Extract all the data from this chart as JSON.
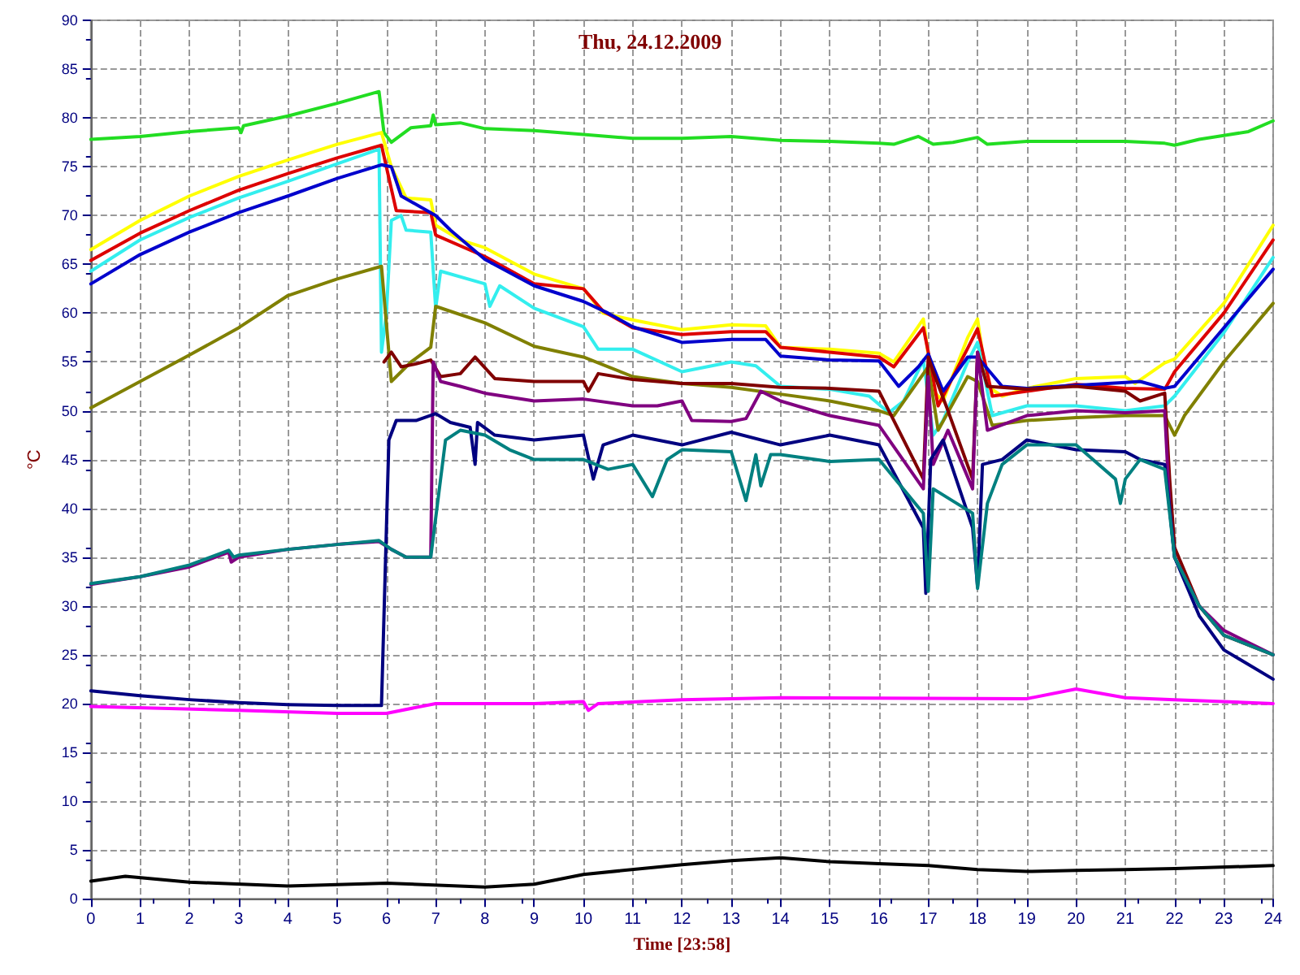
{
  "chart_data": {
    "type": "line",
    "title": "Thu, 24.12.2009",
    "xlabel": "Time [23:58]",
    "ylabel": "°C",
    "xlim": [
      0,
      24
    ],
    "xticks": [
      0,
      1,
      2,
      3,
      4,
      5,
      6,
      7,
      8,
      9,
      10,
      11,
      12,
      13,
      14,
      15,
      16,
      17,
      18,
      19,
      20,
      21,
      22,
      23,
      24
    ],
    "ylim": [
      0,
      90
    ],
    "yticks": [
      0,
      5,
      10,
      15,
      20,
      25,
      30,
      35,
      40,
      45,
      50,
      55,
      60,
      65,
      70,
      75,
      80,
      85,
      90
    ],
    "grid": true,
    "marker": "none",
    "line_style": "solid",
    "series": [
      {
        "color": "#22dd22",
        "x": [
          0,
          1,
          2,
          3,
          3.05,
          3.1,
          4,
          5,
          5.85,
          5.95,
          6.1,
          6.5,
          6.9,
          6.95,
          7,
          7.5,
          8,
          9,
          10,
          11,
          12,
          13,
          14,
          15,
          16,
          16.3,
          16.8,
          17.1,
          17.5,
          18,
          18.2,
          19,
          20,
          21,
          21.8,
          22,
          22.5,
          23,
          23.5,
          24
        ],
        "values": [
          77.8,
          78.1,
          78.6,
          79,
          78.5,
          79.2,
          80.2,
          81.5,
          82.7,
          78.5,
          77.5,
          79,
          79.2,
          80.3,
          79.3,
          79.5,
          78.9,
          78.7,
          78.3,
          77.9,
          77.9,
          78.1,
          77.7,
          77.6,
          77.4,
          77.3,
          78.1,
          77.3,
          77.5,
          78,
          77.3,
          77.6,
          77.6,
          77.6,
          77.4,
          77.2,
          77.8,
          78.2,
          78.6,
          79.7
        ]
      },
      {
        "color": "#ffff00",
        "x": [
          0,
          1,
          2,
          3,
          4,
          5,
          5.9,
          6.1,
          6.4,
          6.9,
          7,
          7.5,
          8,
          9,
          10,
          10.4,
          11,
          12,
          13,
          13.7,
          14,
          15,
          16,
          16.3,
          16.9,
          17.1,
          17.3,
          17.8,
          18,
          18.2,
          18.5,
          19,
          20,
          21,
          21.2,
          21.8,
          22,
          23,
          24
        ],
        "values": [
          66.5,
          69.5,
          72,
          74,
          75.7,
          77.3,
          78.5,
          75,
          71.8,
          71.6,
          69,
          67.5,
          66.7,
          64,
          62.5,
          60,
          59.3,
          58.3,
          58.8,
          58.7,
          56.5,
          56.3,
          55.9,
          55,
          59.4,
          52,
          51,
          57.5,
          59.4,
          52.5,
          51.5,
          52.3,
          53.3,
          53.5,
          52.8,
          54.9,
          55.3,
          61,
          69
        ]
      },
      {
        "color": "#dd0000",
        "x": [
          0,
          1,
          2,
          3,
          4,
          5,
          5.9,
          6.2,
          6.9,
          7,
          8,
          9,
          10,
          10.4,
          11,
          12,
          13,
          13.7,
          14,
          15,
          16,
          16.3,
          16.9,
          17,
          17.2,
          17.8,
          18,
          18.3,
          19,
          20,
          21,
          21.8,
          22,
          23,
          24
        ],
        "values": [
          65.4,
          68.2,
          70.5,
          72.6,
          74.3,
          75.9,
          77.2,
          70.5,
          70.3,
          68,
          65.8,
          63,
          62.5,
          60.2,
          58.5,
          57.8,
          58.1,
          58.1,
          56.5,
          56,
          55.5,
          54.5,
          58.5,
          56,
          50.5,
          56.4,
          58.4,
          51.5,
          52,
          52.7,
          52.3,
          52.2,
          54,
          60,
          67.5
        ]
      },
      {
        "color": "#33eeee",
        "x": [
          0,
          1,
          2,
          3,
          4,
          5,
          5.85,
          5.9,
          6,
          6.1,
          6.3,
          6.4,
          6.9,
          7,
          7.1,
          8,
          8.1,
          8.3,
          9,
          10,
          10.3,
          11,
          12,
          13,
          13.5,
          14,
          15,
          15.8,
          16.2,
          16.5,
          16.9,
          17.1,
          17.3,
          17.8,
          18,
          18.3,
          19,
          20,
          21,
          21.8,
          22,
          23,
          24
        ],
        "values": [
          64.3,
          67.5,
          69.8,
          71.8,
          73.5,
          75.3,
          76.8,
          56,
          60,
          69.5,
          70,
          68.5,
          68.3,
          60.5,
          64.3,
          63,
          60.7,
          62.8,
          60.5,
          58.6,
          56.3,
          56.3,
          54,
          55,
          54.6,
          52.5,
          52.2,
          51.5,
          49.8,
          51,
          55.2,
          47.5,
          49,
          55,
          57,
          49.5,
          50.5,
          50.5,
          50,
          50.5,
          51.5,
          58,
          65.7
        ]
      },
      {
        "color": "#0000cc",
        "x": [
          0,
          1,
          2,
          3,
          4,
          5,
          5.9,
          6.1,
          6.3,
          7,
          7.3,
          8,
          9,
          10,
          10.5,
          11,
          12,
          13,
          13.7,
          14,
          15,
          16,
          16.4,
          16.8,
          17,
          17.3,
          17.8,
          18,
          18.5,
          19,
          20,
          21,
          21.3,
          21.8,
          22,
          23,
          24
        ],
        "values": [
          63,
          66,
          68.3,
          70.3,
          72,
          73.8,
          75.2,
          75,
          72,
          70,
          68.5,
          65.5,
          62.8,
          61.2,
          60,
          58.6,
          57,
          57.3,
          57.3,
          55.6,
          55.2,
          55.1,
          52.5,
          54.5,
          55.8,
          52,
          55.5,
          55.5,
          52.5,
          52.3,
          52.6,
          52.9,
          53,
          52.3,
          52.5,
          58.5,
          64.5
        ]
      },
      {
        "color": "#808000",
        "x": [
          0,
          1,
          2,
          3,
          4,
          5,
          5.9,
          6.1,
          6.5,
          6.9,
          7,
          8,
          9,
          10,
          11,
          12,
          13,
          14,
          15,
          16,
          16.3,
          17,
          17.2,
          17.8,
          18,
          18.3,
          19,
          20,
          21,
          21.8,
          22,
          22.2,
          23,
          24
        ],
        "values": [
          50.3,
          53,
          55.7,
          58.5,
          61.8,
          63.5,
          64.8,
          53,
          55,
          56.5,
          60.7,
          59,
          56.6,
          55.5,
          53.5,
          52.8,
          52.4,
          51.7,
          51,
          50,
          49.5,
          54.5,
          48,
          53.5,
          53,
          48.5,
          49,
          49.3,
          49.5,
          49.5,
          47.5,
          49.5,
          55,
          61
        ]
      },
      {
        "color": "#800000",
        "x": [
          5.95,
          6.1,
          6.3,
          6.6,
          6.9,
          7.1,
          7.5,
          7.8,
          8.2,
          9,
          10,
          10.1,
          10.3,
          11,
          12,
          13,
          14,
          15,
          16,
          16.9,
          17,
          17.1,
          17.4,
          17.9,
          18,
          18.2,
          19,
          20,
          21,
          21.3,
          21.8,
          21.9,
          22,
          22.5,
          23,
          24
        ],
        "values": [
          55,
          56,
          54.5,
          54.8,
          55.2,
          53.5,
          53.8,
          55.5,
          53.3,
          53,
          53,
          52,
          53.8,
          53.2,
          52.8,
          52.8,
          52.4,
          52.3,
          52,
          43,
          55.5,
          54,
          50,
          43,
          56,
          52.5,
          52.2,
          52.5,
          52,
          51,
          51.8,
          43,
          36,
          30,
          27,
          25
        ]
      },
      {
        "color": "#800080",
        "x": [
          0,
          1,
          2,
          2.8,
          2.85,
          3,
          4,
          5,
          5.85,
          6.1,
          6.4,
          6.9,
          6.95,
          7.1,
          7.5,
          8,
          9,
          10,
          11,
          11.5,
          12,
          12.2,
          13,
          13.3,
          13.6,
          14,
          15,
          16,
          16.9,
          17,
          17.1,
          17.4,
          17.9,
          18,
          18.2,
          19,
          20,
          21,
          21.8,
          21.9,
          22,
          22.5,
          23,
          24
        ],
        "values": [
          32.2,
          33,
          34,
          35.5,
          34.5,
          35,
          35.8,
          36.3,
          36.6,
          35.8,
          35,
          35,
          55,
          53,
          52.5,
          51.8,
          51,
          51.2,
          50.5,
          50.5,
          51,
          49,
          48.9,
          49.2,
          52,
          51,
          49.5,
          48.5,
          42,
          53.5,
          44.5,
          48,
          42,
          56,
          48,
          49.5,
          50,
          49.8,
          50,
          40,
          35,
          30,
          27.5,
          25
        ]
      },
      {
        "color": "#000080",
        "x": [
          0,
          1,
          2,
          3,
          4,
          5,
          5.9,
          6.05,
          6.2,
          6.6,
          7,
          7.3,
          7.7,
          7.8,
          7.85,
          8.2,
          9,
          10,
          10.2,
          10.4,
          11,
          12,
          13,
          14,
          15,
          16,
          16.9,
          16.95,
          17.05,
          17.3,
          17.9,
          18,
          18.1,
          18.5,
          19,
          20,
          21,
          21.3,
          21.8,
          21.9,
          22,
          22.5,
          23,
          24
        ],
        "values": [
          21.3,
          20.8,
          20.4,
          20.1,
          19.9,
          19.8,
          19.8,
          47,
          49,
          49,
          49.7,
          48.8,
          48.3,
          44.5,
          48.8,
          47.5,
          47,
          47.5,
          43,
          46.5,
          47.5,
          46.5,
          47.8,
          46.5,
          47.5,
          46.5,
          38,
          31.3,
          45,
          47,
          38,
          32,
          44.5,
          45,
          47,
          46,
          45.8,
          45,
          44.5,
          40,
          35,
          29,
          25.5,
          22.5
        ]
      },
      {
        "color": "#008080",
        "x": [
          0,
          1,
          2,
          2.8,
          2.9,
          3,
          4,
          5,
          5.85,
          6.1,
          6.4,
          6.9,
          7.2,
          7.5,
          8,
          8.5,
          9,
          10,
          10.5,
          11,
          11.4,
          11.7,
          12,
          13,
          13.3,
          13.5,
          13.6,
          13.8,
          14,
          15,
          16,
          16.9,
          17,
          17.1,
          17.9,
          18,
          18.2,
          18.5,
          19,
          20,
          20.8,
          20.9,
          21,
          21.3,
          21.8,
          22,
          22.5,
          23,
          24
        ],
        "values": [
          32.3,
          33,
          34.2,
          35.7,
          35,
          35.2,
          35.8,
          36.3,
          36.7,
          35.8,
          35,
          35,
          47,
          48,
          47.5,
          46,
          45,
          45,
          44,
          44.5,
          41.2,
          45,
          46,
          45.8,
          40.8,
          45.5,
          42.3,
          45.5,
          45.5,
          44.8,
          45,
          39.5,
          31.5,
          42,
          39.5,
          31.8,
          40.5,
          44.5,
          46.5,
          46.5,
          43,
          40.5,
          43,
          45,
          44,
          35,
          30,
          27,
          25
        ]
      },
      {
        "color": "#ff00ff",
        "x": [
          0,
          3,
          5,
          6,
          7,
          9,
          10,
          10.1,
          10.3,
          12,
          14,
          19,
          20,
          21,
          22,
          24
        ],
        "values": [
          19.7,
          19.3,
          19,
          19,
          20,
          20,
          20.2,
          19.3,
          20,
          20.4,
          20.6,
          20.5,
          21.5,
          20.6,
          20.4,
          20
        ]
      },
      {
        "color": "#000000",
        "x": [
          0,
          0.7,
          2,
          4,
          6,
          8,
          9,
          10,
          12,
          13,
          14,
          15,
          16,
          17,
          18,
          19,
          20,
          21,
          22,
          24
        ],
        "values": [
          1.8,
          2.3,
          1.7,
          1.3,
          1.6,
          1.2,
          1.5,
          2.5,
          3.5,
          3.9,
          4.2,
          3.8,
          3.6,
          3.4,
          3,
          2.8,
          2.9,
          3,
          3.1,
          3.4
        ]
      }
    ]
  }
}
